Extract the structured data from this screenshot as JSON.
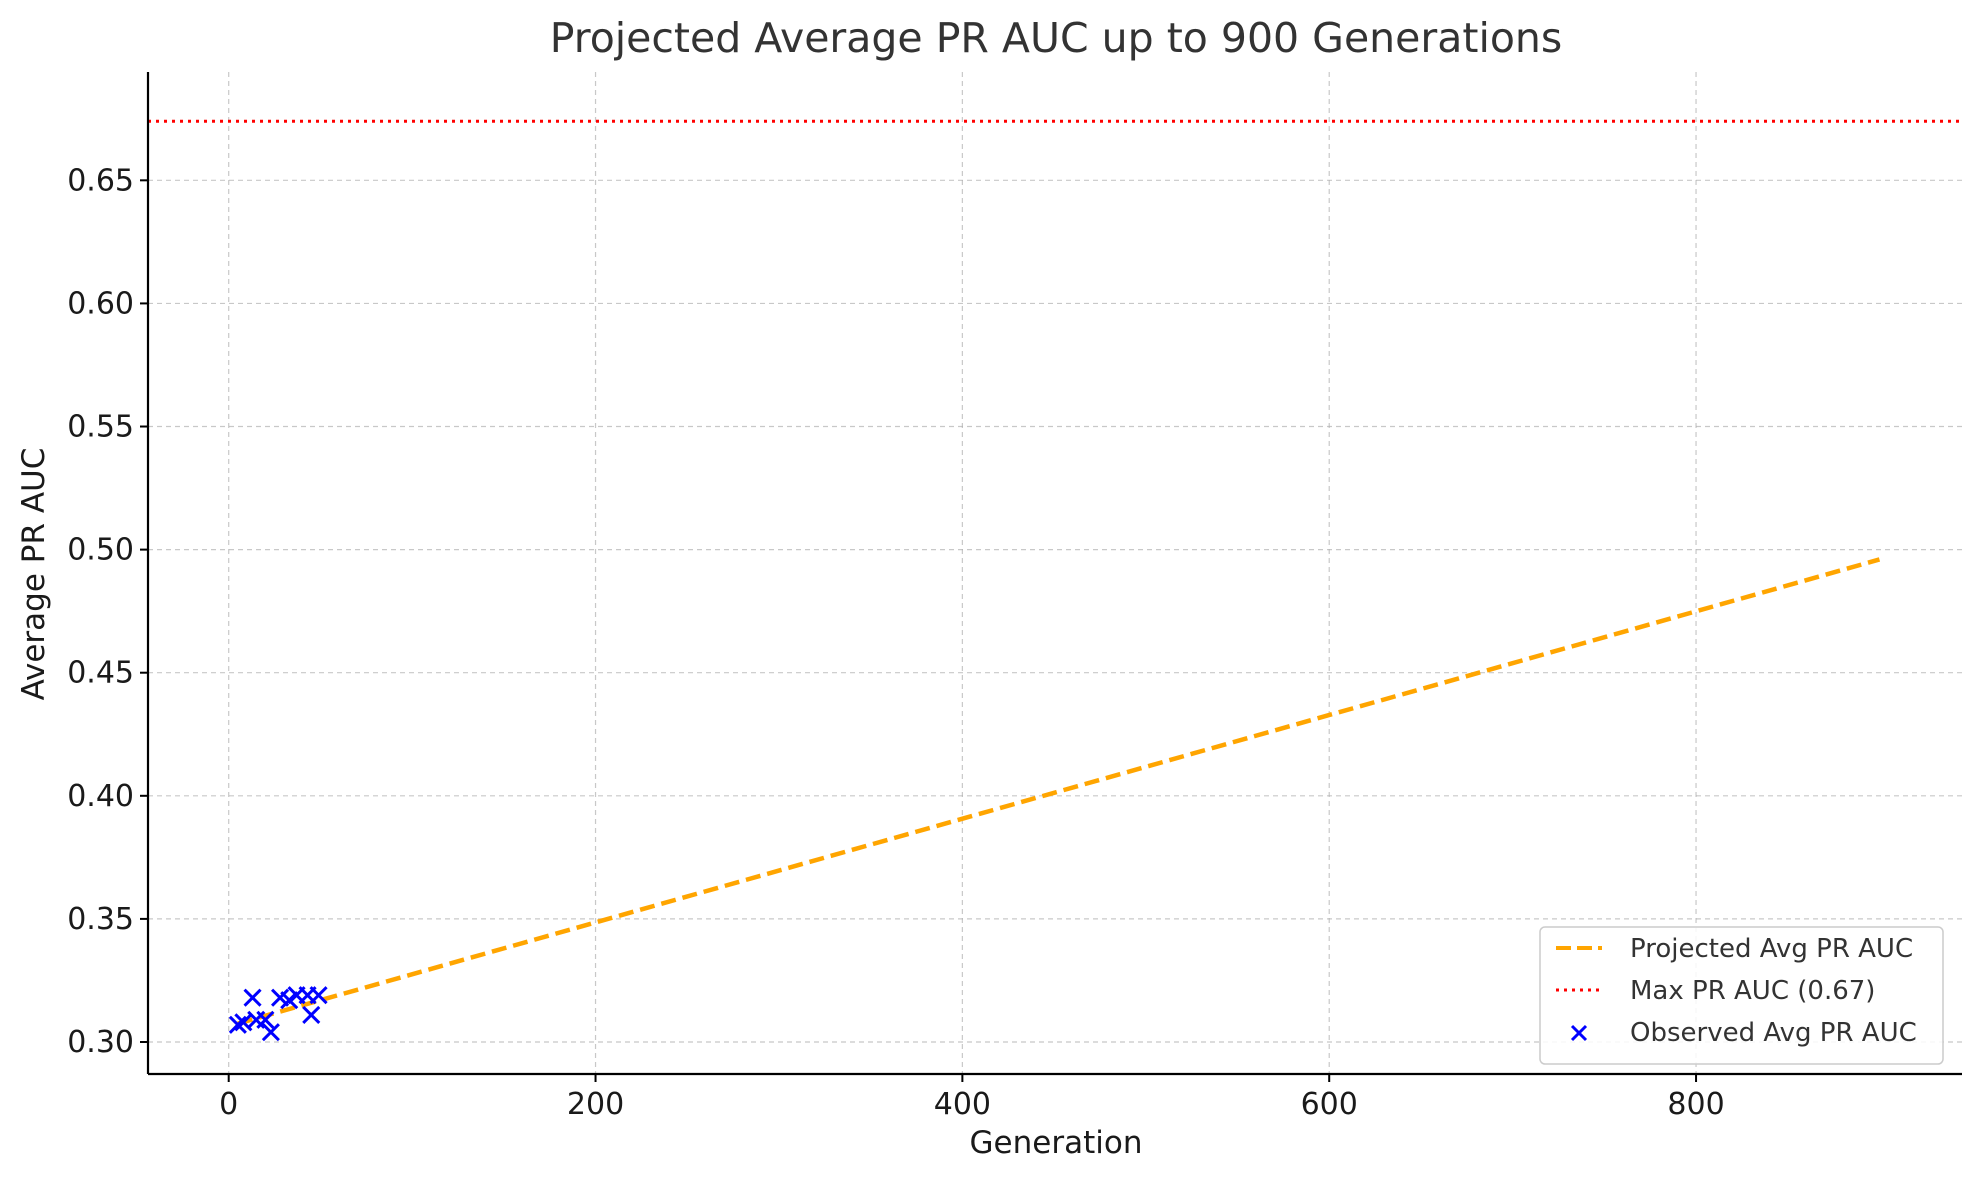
{
  "chart_data": {
    "type": "scatter",
    "title": "Projected Average PR AUC up to 900 Generations",
    "xlabel": "Generation",
    "ylabel": "Average PR AUC",
    "xlim": [
      -44,
      945
    ],
    "ylim": [
      0.287,
      0.694
    ],
    "xticks": [
      {
        "value": 0,
        "label": "0"
      },
      {
        "value": 200,
        "label": "200"
      },
      {
        "value": 400,
        "label": "400"
      },
      {
        "value": 600,
        "label": "600"
      },
      {
        "value": 800,
        "label": "800"
      }
    ],
    "yticks": [
      {
        "value": 0.3,
        "label": "0.30"
      },
      {
        "value": 0.35,
        "label": "0.35"
      },
      {
        "value": 0.4,
        "label": "0.40"
      },
      {
        "value": 0.45,
        "label": "0.45"
      },
      {
        "value": 0.5,
        "label": "0.50"
      },
      {
        "value": 0.55,
        "label": "0.55"
      },
      {
        "value": 0.6,
        "label": "0.60"
      },
      {
        "value": 0.65,
        "label": "0.65"
      }
    ],
    "grid": true,
    "legend_position": "bottom-right",
    "series": [
      {
        "name": "Projected Avg PR AUC",
        "type": "line",
        "style": "dashed",
        "color": "#FFA500",
        "x": [
          5,
          900
        ],
        "y": [
          0.3075,
          0.496
        ]
      },
      {
        "name": "Max PR AUC (0.67)",
        "type": "hline",
        "style": "dotted",
        "color": "#FF0000",
        "y": 0.674
      },
      {
        "name": "Observed Avg PR AUC",
        "type": "scatter",
        "marker": "x",
        "color": "#0000FF",
        "x": [
          5,
          8,
          13,
          15,
          20,
          23,
          28,
          33,
          37,
          43,
          45,
          49
        ],
        "y": [
          0.307,
          0.308,
          0.318,
          0.309,
          0.309,
          0.304,
          0.318,
          0.317,
          0.319,
          0.319,
          0.311,
          0.319
        ]
      }
    ]
  }
}
